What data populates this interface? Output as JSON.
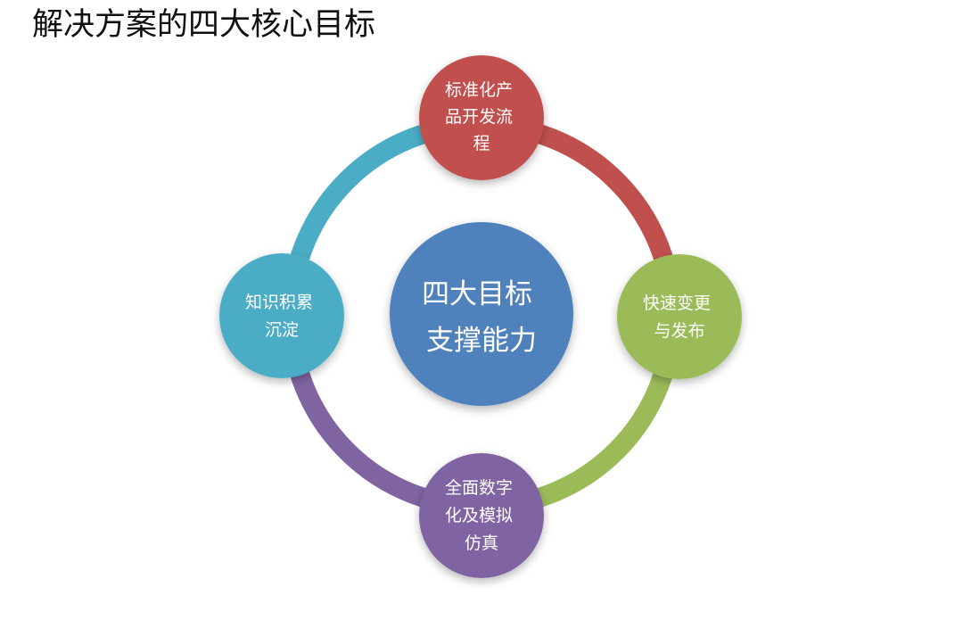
{
  "title": "解决方案的四大核心目标",
  "center": {
    "lines": [
      "四大目标",
      "支撑能力"
    ],
    "color": "#4f81bd"
  },
  "nodes": [
    {
      "id": "top",
      "lines": [
        "标准化产",
        "品开发流",
        "程"
      ],
      "color": "#c0504d"
    },
    {
      "id": "right",
      "lines": [
        "快速变更",
        "与发布"
      ],
      "color": "#9bbb59"
    },
    {
      "id": "bottom",
      "lines": [
        "全面数字",
        "化及模拟",
        "仿真"
      ],
      "color": "#8064a2"
    },
    {
      "id": "left",
      "lines": [
        "知识积累",
        "沉淀"
      ],
      "color": "#4bacc6"
    }
  ]
}
